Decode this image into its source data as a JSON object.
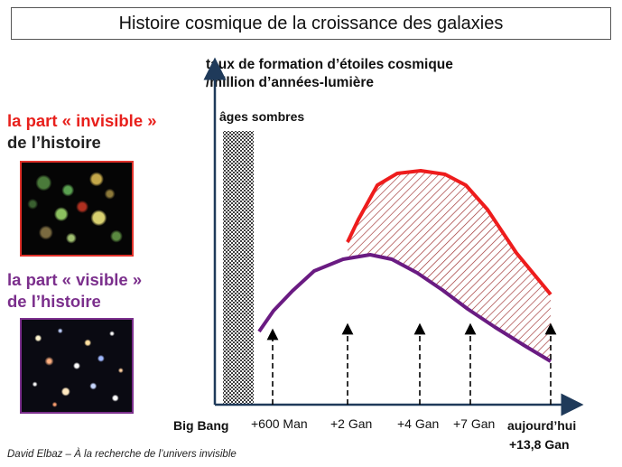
{
  "title": "Histoire cosmique de la croissance des galaxies",
  "y_axis_title": {
    "line1": "taux de formation d’étoiles cosmique",
    "line2": "/million d’années-lumière"
  },
  "dark_ages_label": "âges sombres",
  "invisible": {
    "line1": "la part « invisible »",
    "line2": "de l’histoire"
  },
  "visible": {
    "line1": "la part « visible »",
    "line2": "de l’histoire"
  },
  "x_labels": {
    "big_bang": "Big Bang",
    "t600": "+600 Man",
    "t2": "+2 Gan",
    "t4": "+4 Gan",
    "t7": "+7 Gan",
    "today_line1": "aujourd’hui",
    "today_line2": "+13,8 Gan"
  },
  "credit": "David Elbaz – À la recherche de l’univers invisible",
  "colors": {
    "red_curve": "#ee1c1c",
    "purple_curve": "#6a1b82",
    "hatch": "#9b2a2a",
    "axis": "#1f3a5a"
  }
}
